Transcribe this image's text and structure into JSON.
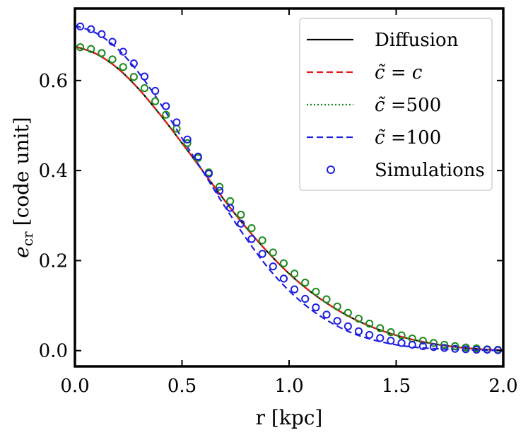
{
  "chart_data": {
    "type": "line",
    "xlabel": "r [kpc]",
    "ylabel_main": "e",
    "ylabel_sub": "cr",
    "ylabel_unit": "[code unit]",
    "xlim": [
      0.0,
      2.0
    ],
    "ylim": [
      -0.035,
      0.76
    ],
    "xticks": [
      0.0,
      0.5,
      1.0,
      1.5,
      2.0
    ],
    "xtick_labels": [
      "0.0",
      "0.5",
      "1.0",
      "1.5",
      "2.0"
    ],
    "yticks": [
      0.0,
      0.2,
      0.4,
      0.6
    ],
    "ytick_labels": [
      "0.0",
      "0.2",
      "0.4",
      "0.6"
    ],
    "grid": false,
    "legend_position": "top-right",
    "legend": [
      {
        "label_prefix": "",
        "label_var": "",
        "label_value": "Diffusion",
        "style": "solid",
        "color": "#000000"
      },
      {
        "label_prefix": "c̃ = ",
        "label_var": "c",
        "label_value": "",
        "style": "dashed",
        "color": "#e41a1c"
      },
      {
        "label_prefix": "c̃ =",
        "label_var": "",
        "label_value": "500",
        "style": "dotted",
        "color": "#1a8a1a"
      },
      {
        "label_prefix": "c̃ =",
        "label_var": "",
        "label_value": "100",
        "style": "dashed",
        "color": "#1f1fe0"
      },
      {
        "label_prefix": "",
        "label_var": "",
        "label_value": "Simulations",
        "style": "marker",
        "color": "#1f1fe0"
      }
    ],
    "series": [
      {
        "name": "Diffusion",
        "style": "solid",
        "color": "#000000",
        "x": [
          0.0,
          0.1,
          0.2,
          0.3,
          0.4,
          0.5,
          0.6,
          0.7,
          0.8,
          0.9,
          1.0,
          1.1,
          1.2,
          1.3,
          1.4,
          1.5,
          1.6,
          1.7,
          1.8,
          1.9,
          2.0
        ],
        "y": [
          0.676,
          0.659,
          0.627,
          0.58,
          0.523,
          0.461,
          0.397,
          0.333,
          0.273,
          0.219,
          0.171,
          0.131,
          0.098,
          0.071,
          0.05,
          0.034,
          0.022,
          0.013,
          0.007,
          0.003,
          0.001
        ]
      },
      {
        "name": "c̃ = c",
        "style": "dashed",
        "color": "#e41a1c",
        "x": [
          0.0,
          0.1,
          0.2,
          0.3,
          0.4,
          0.5,
          0.6,
          0.7,
          0.8,
          0.9,
          1.0,
          1.1,
          1.2,
          1.3,
          1.4,
          1.5,
          1.6,
          1.7,
          1.8,
          1.9,
          2.0
        ],
        "y": [
          0.676,
          0.659,
          0.627,
          0.58,
          0.523,
          0.461,
          0.397,
          0.333,
          0.273,
          0.219,
          0.171,
          0.131,
          0.098,
          0.071,
          0.05,
          0.034,
          0.022,
          0.013,
          0.007,
          0.003,
          0.001
        ]
      },
      {
        "name": "c̃ =500",
        "style": "dotted",
        "color": "#1a8a1a",
        "x": [
          0.0,
          0.1,
          0.2,
          0.3,
          0.4,
          0.5,
          0.6,
          0.7,
          0.8,
          0.9,
          1.0,
          1.1,
          1.2,
          1.3,
          1.4,
          1.5,
          1.6,
          1.7,
          1.8,
          1.9,
          2.0
        ],
        "y": [
          0.676,
          0.659,
          0.627,
          0.58,
          0.523,
          0.461,
          0.397,
          0.333,
          0.273,
          0.219,
          0.171,
          0.131,
          0.098,
          0.071,
          0.05,
          0.034,
          0.022,
          0.013,
          0.007,
          0.003,
          0.001
        ]
      },
      {
        "name": "c̃ =100",
        "style": "dashed",
        "color": "#1f1fe0",
        "x": [
          0.0,
          0.1,
          0.2,
          0.3,
          0.4,
          0.5,
          0.6,
          0.7,
          0.8,
          0.9,
          1.0,
          1.1,
          1.2,
          1.3,
          1.4,
          1.5,
          1.6,
          1.7,
          1.8,
          1.9,
          2.0
        ],
        "y": [
          0.722,
          0.705,
          0.67,
          0.616,
          0.548,
          0.472,
          0.396,
          0.32,
          0.249,
          0.185,
          0.133,
          0.092,
          0.061,
          0.038,
          0.023,
          0.013,
          0.007,
          0.004,
          0.002,
          0.001,
          0.0
        ]
      }
    ],
    "markers_green": {
      "name": "Simulations (c̃ =500)",
      "color": "#1a8a1a",
      "x": [
        0.025,
        0.075,
        0.125,
        0.175,
        0.225,
        0.275,
        0.325,
        0.375,
        0.425,
        0.475,
        0.525,
        0.575,
        0.625,
        0.675,
        0.725,
        0.775,
        0.825,
        0.875,
        0.925,
        0.975,
        1.025,
        1.075,
        1.125,
        1.175,
        1.225,
        1.275,
        1.325,
        1.375,
        1.425,
        1.475,
        1.525,
        1.575,
        1.625,
        1.675,
        1.725,
        1.775,
        1.825,
        1.875,
        1.925,
        1.975
      ],
      "y": [
        0.674,
        0.67,
        0.661,
        0.647,
        0.63,
        0.608,
        0.583,
        0.554,
        0.524,
        0.493,
        0.461,
        0.428,
        0.396,
        0.364,
        0.332,
        0.302,
        0.272,
        0.245,
        0.218,
        0.194,
        0.171,
        0.151,
        0.131,
        0.114,
        0.098,
        0.084,
        0.071,
        0.06,
        0.05,
        0.041,
        0.034,
        0.027,
        0.022,
        0.017,
        0.013,
        0.01,
        0.007,
        0.005,
        0.003,
        0.002
      ]
    },
    "markers_blue": {
      "name": "Simulations",
      "color": "#1f1fe0",
      "x": [
        0.025,
        0.075,
        0.125,
        0.175,
        0.225,
        0.275,
        0.325,
        0.375,
        0.425,
        0.475,
        0.525,
        0.575,
        0.625,
        0.675,
        0.725,
        0.775,
        0.825,
        0.875,
        0.925,
        0.975,
        1.025,
        1.075,
        1.125,
        1.175,
        1.225,
        1.275,
        1.325,
        1.375,
        1.425,
        1.475,
        1.525,
        1.575,
        1.625,
        1.675,
        1.725,
        1.775,
        1.825,
        1.875,
        1.925,
        1.975
      ],
      "y": [
        0.72,
        0.714,
        0.703,
        0.686,
        0.664,
        0.638,
        0.609,
        0.577,
        0.543,
        0.507,
        0.469,
        0.431,
        0.393,
        0.355,
        0.317,
        0.282,
        0.248,
        0.215,
        0.187,
        0.16,
        0.136,
        0.115,
        0.096,
        0.08,
        0.066,
        0.054,
        0.043,
        0.035,
        0.028,
        0.022,
        0.017,
        0.013,
        0.01,
        0.008,
        0.006,
        0.004,
        0.003,
        0.002,
        0.002,
        0.001
      ]
    }
  }
}
